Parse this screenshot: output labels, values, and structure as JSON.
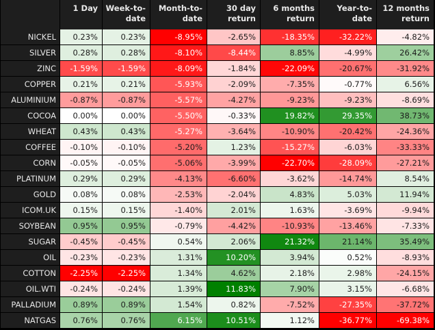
{
  "chart_data": {
    "type": "heatmap",
    "columns": [
      "1 Day",
      "Week-to-\ndate",
      "Month-to-\ndate",
      "30 day\nreturn",
      "6 months\nreturn",
      "Year-to-\ndate",
      "12 months\nreturn"
    ],
    "rows": [
      "NICKEL",
      "SILVER",
      "ZINC",
      "COPPER",
      "ALUMINIUM",
      "COCOA",
      "WHEAT",
      "COFFEE",
      "CORN",
      "PLATINUM",
      "GOLD",
      "ICOM.UK",
      "SOYBEAN",
      "SUGAR",
      "OIL",
      "COTTON",
      "OIL.WTI",
      "PALLADIUM",
      "NATGAS"
    ],
    "values": [
      [
        0.23,
        0.23,
        -8.95,
        -2.65,
        -18.35,
        -32.22,
        -4.82
      ],
      [
        0.28,
        0.28,
        -8.1,
        -8.44,
        8.85,
        -4.99,
        26.42
      ],
      [
        -1.59,
        -1.59,
        -8.09,
        -1.84,
        -22.09,
        -20.67,
        -31.92
      ],
      [
        0.21,
        0.21,
        -5.93,
        -2.09,
        -7.35,
        -0.77,
        6.56
      ],
      [
        -0.87,
        -0.87,
        -5.57,
        -4.27,
        -9.23,
        -9.23,
        -8.69
      ],
      [
        0.0,
        0.0,
        -5.5,
        -0.33,
        19.82,
        29.35,
        38.73
      ],
      [
        0.43,
        0.43,
        -5.27,
        -3.64,
        -10.9,
        -20.42,
        -24.36
      ],
      [
        -0.1,
        -0.1,
        -5.2,
        1.23,
        -15.27,
        -6.03,
        -33.33
      ],
      [
        -0.05,
        -0.05,
        -5.06,
        -3.99,
        -22.7,
        -28.09,
        -27.21
      ],
      [
        0.29,
        0.29,
        -4.13,
        -6.6,
        -3.62,
        -14.74,
        8.54
      ],
      [
        0.08,
        0.08,
        -2.53,
        -2.04,
        4.83,
        5.03,
        11.94
      ],
      [
        0.15,
        0.15,
        -1.4,
        2.01,
        1.63,
        -3.69,
        -9.94
      ],
      [
        0.95,
        0.95,
        -0.79,
        -4.42,
        -10.93,
        -13.46,
        -7.33
      ],
      [
        -0.45,
        -0.45,
        0.54,
        2.06,
        21.32,
        21.14,
        35.49
      ],
      [
        -0.23,
        -0.23,
        1.31,
        10.2,
        3.94,
        0.52,
        -8.93
      ],
      [
        -2.25,
        -2.25,
        1.34,
        4.62,
        2.18,
        2.98,
        -24.15
      ],
      [
        -0.24,
        -0.24,
        1.39,
        11.83,
        7.9,
        3.15,
        -6.68
      ],
      [
        0.89,
        0.89,
        1.54,
        0.82,
        -7.52,
        -27.35,
        -37.72
      ],
      [
        0.76,
        0.76,
        6.15,
        10.51,
        1.12,
        -36.77,
        -69.38
      ]
    ],
    "unit": "%",
    "decimals": 2,
    "color_scale": {
      "negative": "#ff0000",
      "neutral": "#ffffff",
      "positive": "#008000"
    }
  }
}
